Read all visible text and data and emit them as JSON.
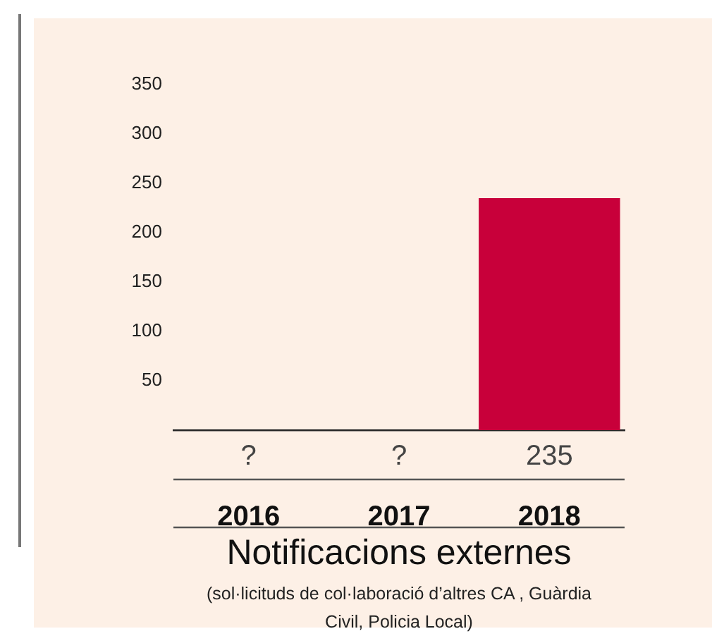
{
  "chart_data": {
    "type": "bar",
    "title": "Notificacions externes",
    "subtitle": "(sol·licituds de col·laboració d’altres CA , Guàrdia Civil, Policia Local)",
    "categories": [
      "2016",
      "2017",
      "2018"
    ],
    "values": [
      null,
      null,
      235
    ],
    "value_labels": [
      "?",
      "?",
      "235"
    ],
    "color": "#c8003a",
    "ylim": [
      0,
      350
    ],
    "yticks": [
      50,
      100,
      150,
      200,
      250,
      300,
      350
    ]
  }
}
